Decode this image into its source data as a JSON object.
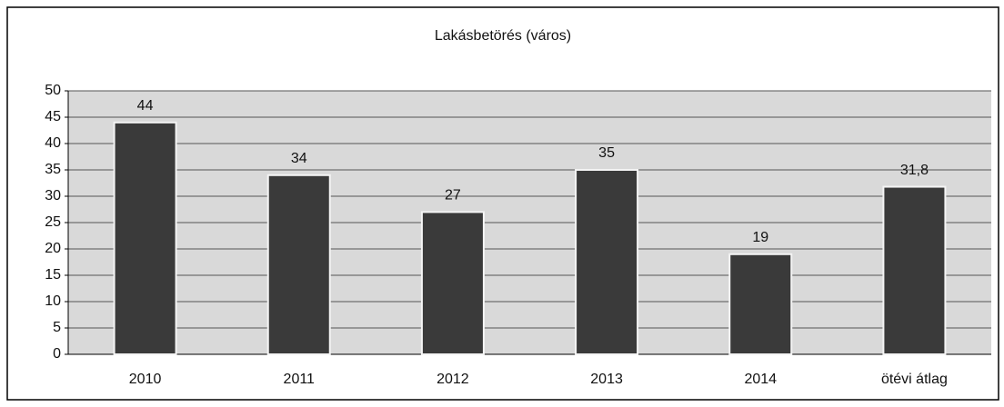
{
  "chart_data": {
    "type": "bar",
    "title": "Lakásbetörés (város)",
    "categories": [
      "2010",
      "2011",
      "2012",
      "2013",
      "2014",
      "ötévi átlag"
    ],
    "values": [
      44,
      34,
      27,
      35,
      19,
      31.8
    ],
    "value_labels": [
      "44",
      "34",
      "27",
      "35",
      "19",
      "31,8"
    ],
    "color": "#3a3a3a",
    "ylim": [
      0,
      50
    ],
    "yticks": [
      0,
      5,
      10,
      15,
      20,
      25,
      30,
      35,
      40,
      45,
      50
    ],
    "grid": true
  }
}
